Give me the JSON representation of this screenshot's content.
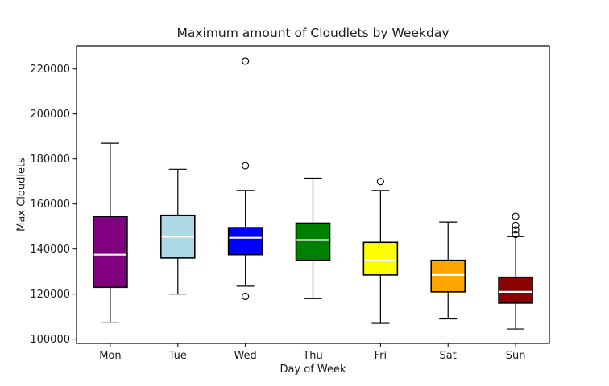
{
  "chart_data": {
    "type": "boxplot",
    "title": "Maximum amount of Cloudlets by Weekday",
    "xlabel": "Day of Week",
    "ylabel": "Max Cloudlets",
    "categories": [
      "Mon",
      "Tue",
      "Wed",
      "Thu",
      "Fri",
      "Sat",
      "Sun"
    ],
    "ylim": [
      98100,
      230250
    ],
    "yticks": [
      100000,
      120000,
      140000,
      160000,
      180000,
      200000,
      220000
    ],
    "grid": false,
    "legend": "none",
    "median_color": "#ffffff",
    "box_edge_color": "#000000",
    "series": [
      {
        "label": "Mon",
        "color": "#800080",
        "whisker_low": 107500,
        "q1": 123000,
        "median": 137500,
        "q3": 154500,
        "whisker_high": 187000,
        "outliers": []
      },
      {
        "label": "Tue",
        "color": "#add8e6",
        "whisker_low": 120000,
        "q1": 136000,
        "median": 145500,
        "q3": 155000,
        "whisker_high": 175500,
        "outliers": []
      },
      {
        "label": "Wed",
        "color": "#0000ff",
        "whisker_low": 123500,
        "q1": 137500,
        "median": 145000,
        "q3": 149500,
        "whisker_high": 166000,
        "outliers": [
          223500,
          177000,
          119000
        ]
      },
      {
        "label": "Thu",
        "color": "#008000",
        "whisker_low": 118000,
        "q1": 135000,
        "median": 144000,
        "q3": 151500,
        "whisker_high": 171500,
        "outliers": []
      },
      {
        "label": "Fri",
        "color": "#ffff00",
        "whisker_low": 107000,
        "q1": 128500,
        "median": 135000,
        "q3": 143000,
        "whisker_high": 166000,
        "outliers": [
          170000
        ]
      },
      {
        "label": "Sat",
        "color": "#ffa500",
        "whisker_low": 109000,
        "q1": 121000,
        "median": 128500,
        "q3": 135000,
        "whisker_high": 152000,
        "outliers": []
      },
      {
        "label": "Sun",
        "color": "#8b0000",
        "whisker_low": 104500,
        "q1": 116000,
        "median": 121000,
        "q3": 127500,
        "whisker_high": 145500,
        "outliers": [
          154500,
          150500,
          148500,
          146500
        ]
      }
    ]
  }
}
